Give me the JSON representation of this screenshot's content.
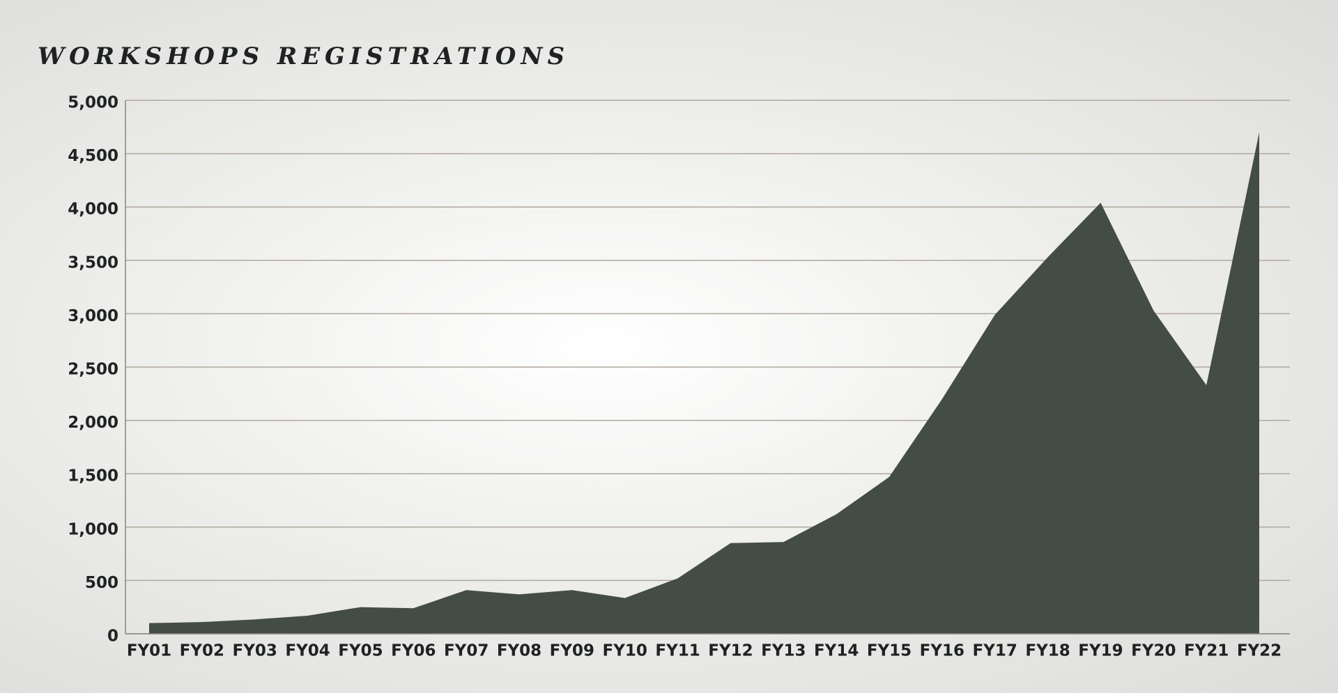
{
  "chart_data": {
    "type": "area",
    "title": "WORKSHOPS REGISTRATIONS",
    "categories": [
      "FY01",
      "FY02",
      "FY03",
      "FY04",
      "FY05",
      "FY06",
      "FY07",
      "FY08",
      "FY09",
      "FY10",
      "FY11",
      "FY12",
      "FY13",
      "FY14",
      "FY15",
      "FY16",
      "FY17",
      "FY18",
      "FY19",
      "FY20",
      "FY21",
      "FY22"
    ],
    "values": [
      100,
      110,
      135,
      170,
      250,
      240,
      410,
      370,
      410,
      335,
      520,
      850,
      860,
      1120,
      1470,
      2200,
      2990,
      3530,
      4040,
      3030,
      2330,
      4700
    ],
    "color": "#434c47",
    "ylim": [
      0,
      5000
    ],
    "yticks": [
      0,
      500,
      {
        "value": 1000,
        "label": "1,000"
      },
      {
        "value": 1500,
        "label": "1,500"
      },
      {
        "value": 2000,
        "label": "2,000"
      },
      {
        "value": 2500,
        "label": "2,500"
      },
      {
        "value": 3000,
        "label": "3,000"
      },
      {
        "value": 3500,
        "label": "3,500"
      },
      {
        "value": 4000,
        "label": "4,000"
      },
      {
        "value": 4500,
        "label": "4,500"
      },
      {
        "value": 5000,
        "label": "5,000"
      }
    ],
    "grid": true
  }
}
